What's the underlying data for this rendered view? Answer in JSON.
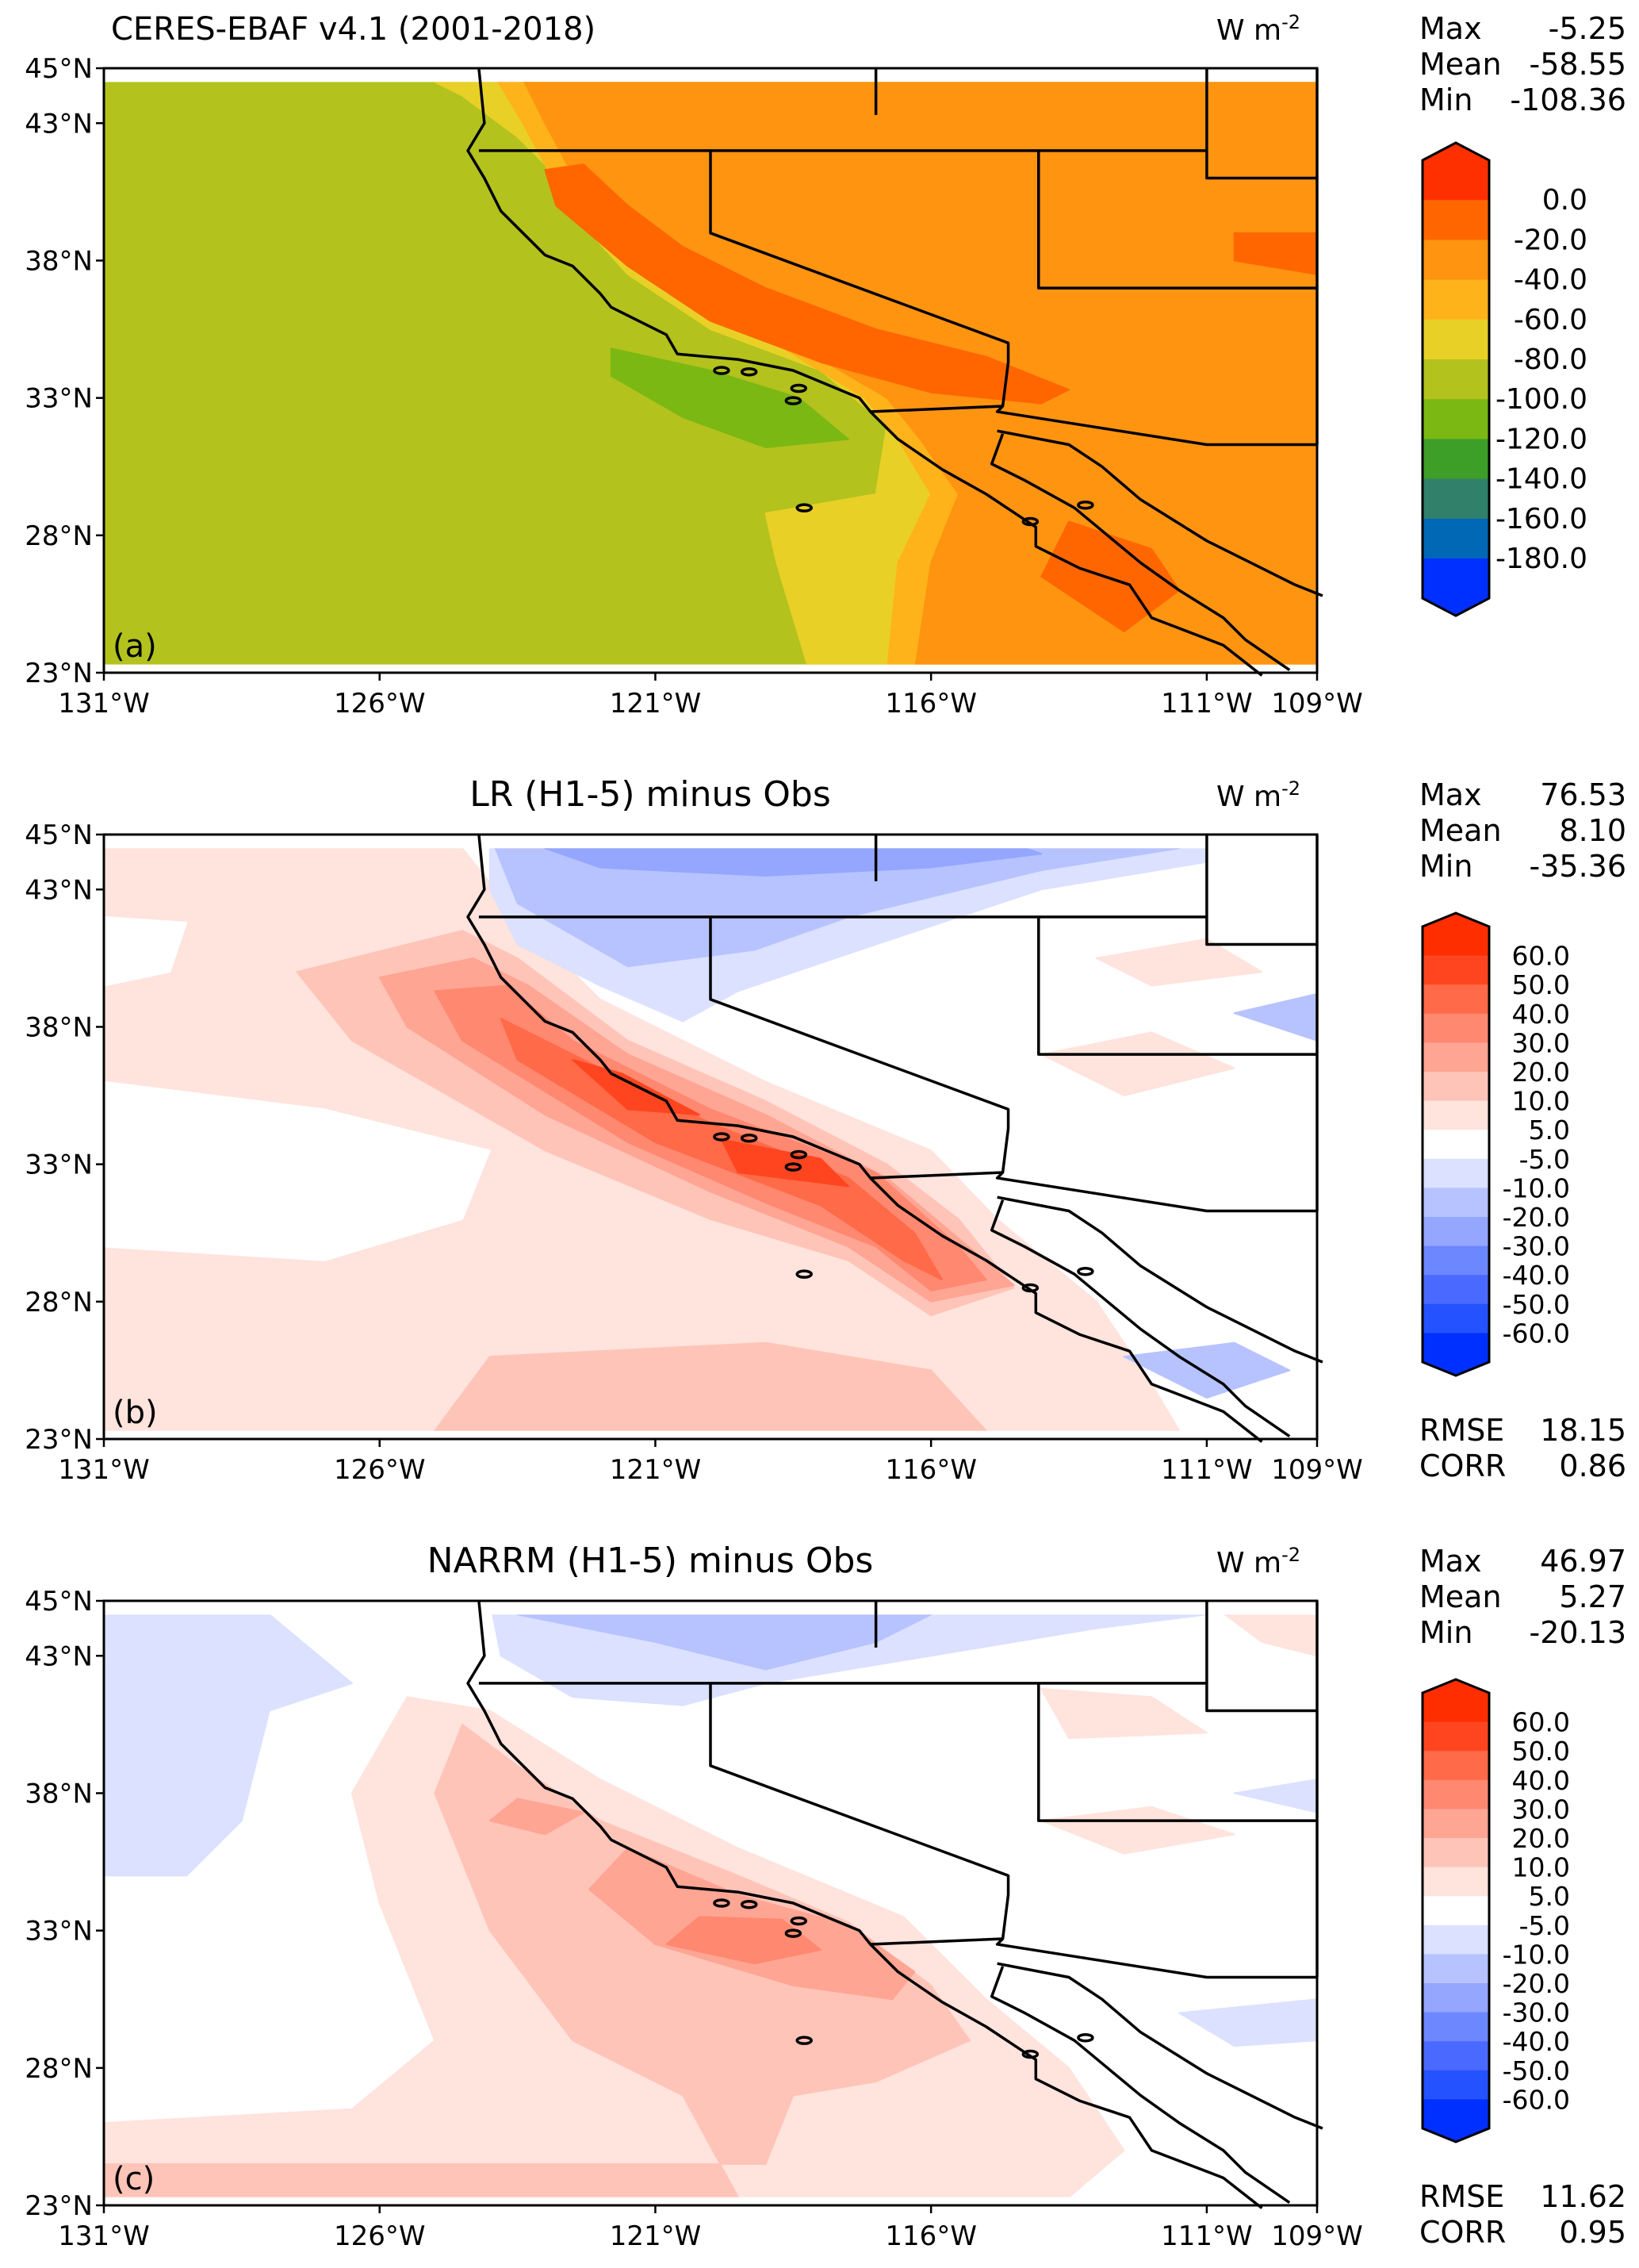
{
  "figure": {
    "lon_ticks": [
      "131°W",
      "126°W",
      "121°W",
      "116°W",
      "111°W",
      "109°W"
    ],
    "lon_values": [
      -131,
      -126,
      -121,
      -116,
      -111,
      -109
    ],
    "lat_ticks": [
      "45°N",
      "43°N",
      "38°N",
      "33°N",
      "28°N",
      "23°N"
    ],
    "lat_values": [
      45,
      43,
      38,
      33,
      28,
      23
    ],
    "units": "W m",
    "units_exp": "-2"
  },
  "panels": [
    {
      "title": "CERES-EBAF v4.1 (2001-2018)",
      "label": "(a)",
      "stats": [
        [
          "Max",
          "-5.25"
        ],
        [
          "Mean",
          "-58.55"
        ],
        [
          "Min",
          "-108.36"
        ]
      ],
      "scores": [],
      "colorbar_labels": [
        "0.0",
        "-20.0",
        "-40.0",
        "-60.0",
        "-80.0",
        "-100.0",
        "-120.0",
        "-140.0",
        "-160.0",
        "-180.0"
      ],
      "colorbar_colors": [
        "#ff3000",
        "#ff6600",
        "#ff9410",
        "#ffb31a",
        "#e8d027",
        "#b3c21d",
        "#7bb814",
        "#3d9e28",
        "#30806a",
        "#0068b4",
        "#0030ff"
      ]
    },
    {
      "title": "LR (H1-5) minus Obs",
      "label": "(b)",
      "stats": [
        [
          "Max",
          "76.53"
        ],
        [
          "Mean",
          "8.10"
        ],
        [
          "Min",
          "-35.36"
        ]
      ],
      "scores": [
        [
          "RMSE",
          "18.15"
        ],
        [
          "CORR",
          "0.86"
        ]
      ],
      "colorbar_labels": [
        "60.0",
        "50.0",
        "40.0",
        "30.0",
        "20.0",
        "10.0",
        "5.0",
        "-5.0",
        "-10.0",
        "-20.0",
        "-30.0",
        "-40.0",
        "-50.0",
        "-60.0"
      ],
      "colorbar_colors": [
        "#ff2e00",
        "#ff4520",
        "#ff6a48",
        "#ff8870",
        "#ffa594",
        "#ffc4b8",
        "#ffe3dd",
        "#ffffff",
        "#dbe1ff",
        "#b6c3ff",
        "#94a6ff",
        "#6c87ff",
        "#4a6aff",
        "#2452ff",
        "#0030ff"
      ]
    },
    {
      "title": "NARRM (H1-5) minus Obs",
      "label": "(c)",
      "stats": [
        [
          "Max",
          "46.97"
        ],
        [
          "Mean",
          "5.27"
        ],
        [
          "Min",
          "-20.13"
        ]
      ],
      "scores": [
        [
          "RMSE",
          "11.62"
        ],
        [
          "CORR",
          "0.95"
        ]
      ],
      "colorbar_labels": [
        "60.0",
        "50.0",
        "40.0",
        "30.0",
        "20.0",
        "10.0",
        "5.0",
        "-5.0",
        "-10.0",
        "-20.0",
        "-30.0",
        "-40.0",
        "-50.0",
        "-60.0"
      ],
      "colorbar_colors": [
        "#ff2e00",
        "#ff4520",
        "#ff6a48",
        "#ff8870",
        "#ffa594",
        "#ffc4b8",
        "#ffe3dd",
        "#ffffff",
        "#dbe1ff",
        "#b6c3ff",
        "#94a6ff",
        "#6c87ff",
        "#4a6aff",
        "#2452ff",
        "#0030ff"
      ]
    }
  ]
}
